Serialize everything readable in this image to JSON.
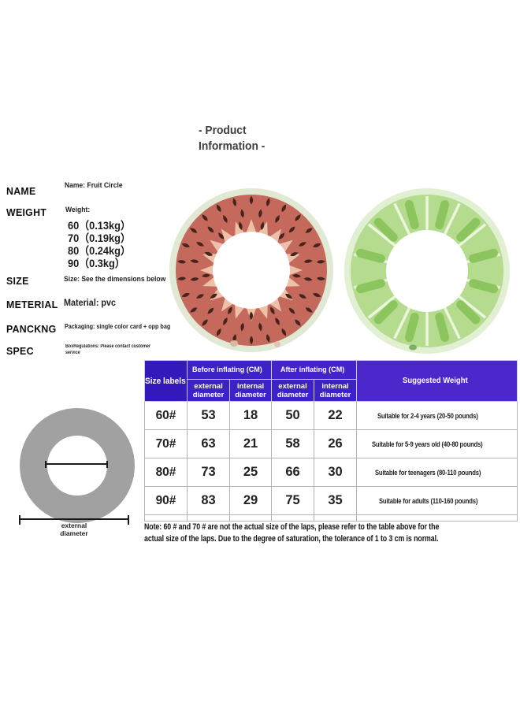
{
  "title": {
    "line1": "- Product",
    "line2": "Information -"
  },
  "specs": {
    "name_label": "NAME",
    "name_value": "Name: Fruit Circle",
    "weight_label": "WEIGHT",
    "weight_title": "Weight:",
    "weights": [
      "60（0.13kg）",
      "70（0.19kg）",
      "80（0.24kg）",
      "90（0.3kg）"
    ],
    "size_label": "SIZE",
    "size_value": "Size: See the dimensions below",
    "material_label": "METERIAL",
    "material_value": "Material: pvc",
    "packaging_label": "PANCKNG",
    "packaging_value": "Packaging: single color card + opp bag",
    "spec_label": "SPEC",
    "spec_value_line1": "BoxRegulations: Please contact customer",
    "spec_value_line2": "service"
  },
  "images": {
    "left": "watermelon-swim-ring",
    "right": "kiwi-swim-ring"
  },
  "diagram": {
    "label_line1": "external",
    "label_line2": "diameter"
  },
  "table": {
    "header": {
      "size_labels": "Size labels",
      "before": "Before inflating (CM)",
      "after": "After inflating (CM)",
      "external": "external diameter",
      "internal": "internal diameter",
      "suggested": "Suggested Weight"
    },
    "rows": [
      {
        "size": "60#",
        "before_ext": "53",
        "before_int": "18",
        "after_ext": "50",
        "after_int": "22",
        "suggested": "Suitable for 2-4 years (20-50 pounds)"
      },
      {
        "size": "70#",
        "before_ext": "63",
        "before_int": "21",
        "after_ext": "58",
        "after_int": "26",
        "suggested": "Suitable for 5-9 years old (40-80 pounds)"
      },
      {
        "size": "80#",
        "before_ext": "73",
        "before_int": "25",
        "after_ext": "66",
        "after_int": "30",
        "suggested": "Suitable for teenagers (80-110 pounds)"
      },
      {
        "size": "90#",
        "before_ext": "83",
        "before_int": "29",
        "after_ext": "75",
        "after_int": "35",
        "suggested": "Suitable for adults (110-160 pounds)"
      }
    ]
  },
  "note": {
    "line1": "Note: 60 # and 70 # are not the actual size of the laps, please refer to the table above for the",
    "line2": "actual size of the laps. Due to the degree of saturation, the tolerance of 1 to 3 cm is normal."
  },
  "colors": {
    "header_blue_dark": "#3319bc",
    "header_blue": "#3d22c6",
    "header_blue_after": "#4423cb",
    "header_purple": "#4c27cb",
    "watermelon_red": "#c5695d",
    "watermelon_rim": "#e0e9d3",
    "watermelon_seed": "#44241b",
    "watermelon_flesh": "#eec0a9",
    "kiwi_rim": "#e1f0d2",
    "kiwi_green": "#b4db8e",
    "kiwi_dark_green": "#8cc55e",
    "kiwi_separator": "#ebf6dd",
    "diagram_gray": "#a1a1a1"
  }
}
